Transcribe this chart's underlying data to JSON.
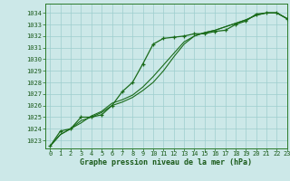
{
  "title": "Graphe pression niveau de la mer (hPa)",
  "bg_color": "#cce8e8",
  "grid_color": "#9ecece",
  "line_color": "#1a6b1a",
  "xlim": [
    -0.5,
    23
  ],
  "ylim": [
    1022.3,
    1034.8
  ],
  "xticks": [
    0,
    1,
    2,
    3,
    4,
    5,
    6,
    7,
    8,
    9,
    10,
    11,
    12,
    13,
    14,
    15,
    16,
    17,
    18,
    19,
    20,
    21,
    22,
    23
  ],
  "yticks": [
    1023,
    1024,
    1025,
    1026,
    1027,
    1028,
    1029,
    1030,
    1031,
    1032,
    1033,
    1034
  ],
  "series_marked_x": [
    0,
    1,
    2,
    3,
    4,
    5,
    6,
    7,
    8,
    9,
    10,
    11,
    12,
    13,
    14,
    15,
    16,
    17,
    18,
    19,
    20,
    21,
    22,
    23
  ],
  "series_marked_y": [
    1022.5,
    1023.8,
    1024.0,
    1025.0,
    1025.0,
    1025.2,
    1026.0,
    1027.2,
    1028.0,
    1029.6,
    1031.3,
    1031.8,
    1031.9,
    1032.0,
    1032.2,
    1032.2,
    1032.4,
    1032.5,
    1033.0,
    1033.3,
    1033.9,
    1034.0,
    1034.0,
    1033.5
  ],
  "series2_x": [
    0,
    1,
    2,
    3,
    4,
    5,
    6,
    7,
    8,
    9,
    10,
    11,
    12,
    13,
    14,
    15,
    16,
    17,
    18,
    19,
    20,
    21,
    22,
    23
  ],
  "series2_y": [
    1022.5,
    1023.5,
    1024.0,
    1024.5,
    1025.1,
    1025.5,
    1026.2,
    1026.5,
    1026.9,
    1027.6,
    1028.5,
    1029.5,
    1030.5,
    1031.5,
    1032.0,
    1032.3,
    1032.5,
    1032.8,
    1033.1,
    1033.4,
    1033.8,
    1034.0,
    1034.0,
    1033.5
  ],
  "series3_x": [
    0,
    1,
    2,
    3,
    4,
    5,
    6,
    7,
    8,
    9,
    10,
    11,
    12,
    13,
    14,
    15,
    16,
    17,
    18,
    19,
    20,
    21,
    22,
    23
  ],
  "series3_y": [
    1022.5,
    1023.5,
    1024.0,
    1024.7,
    1025.0,
    1025.4,
    1026.0,
    1026.3,
    1026.7,
    1027.3,
    1028.0,
    1029.0,
    1030.2,
    1031.3,
    1032.0,
    1032.3,
    1032.5,
    1032.8,
    1033.1,
    1033.4,
    1033.8,
    1034.0,
    1034.0,
    1033.5
  ]
}
